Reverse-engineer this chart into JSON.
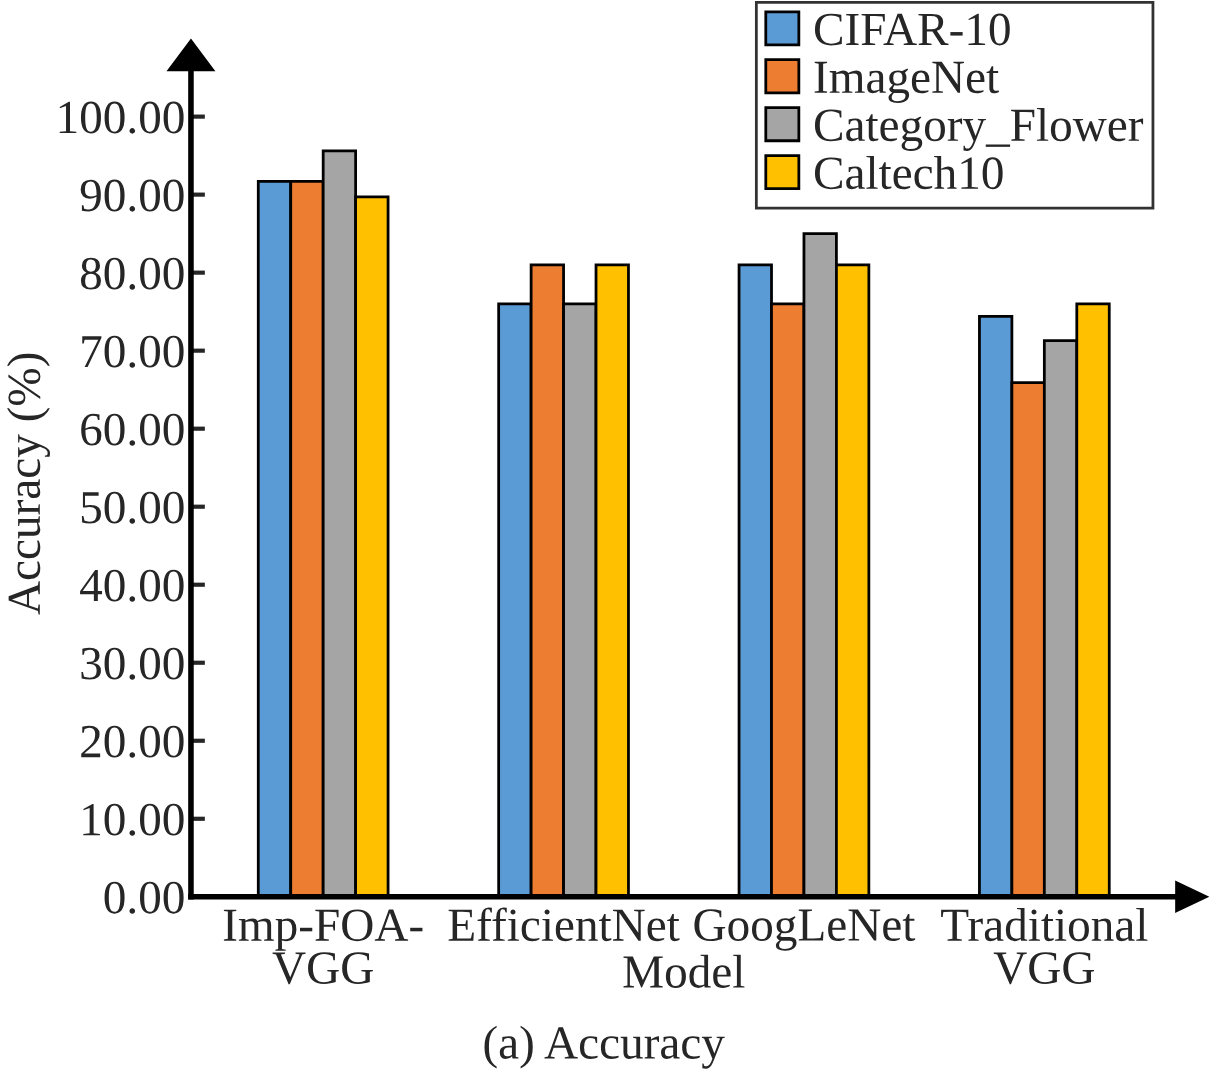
{
  "chart_data": {
    "type": "bar",
    "title": "(a) Accuracy",
    "xlabel": "Model",
    "ylabel": "Accuracy (%)",
    "categories": [
      "Imp-FOA-\nVGG",
      "EfficientNet",
      "GoogLeNet",
      "Traditional\nVGG"
    ],
    "series": [
      {
        "name": "CIFAR-10",
        "color": "#5b9bd5",
        "values": [
          91.7,
          76,
          81,
          74.4
        ]
      },
      {
        "name": "ImageNet",
        "color": "#ed7d31",
        "values": [
          91.7,
          81,
          76,
          65.9
        ]
      },
      {
        "name": "Category_Flower",
        "color": "#a5a5a5",
        "values": [
          95.6,
          76,
          85,
          71.3
        ]
      },
      {
        "name": "Caltech10",
        "color": "#ffc000",
        "values": [
          89.7,
          81,
          81,
          76
        ]
      }
    ],
    "ylim": [
      0,
      106
    ],
    "yticks": [
      {
        "value": 0,
        "label": "0.00"
      },
      {
        "value": 10,
        "label": "10.00"
      },
      {
        "value": 20,
        "label": "20.00"
      },
      {
        "value": 30,
        "label": "30.00"
      },
      {
        "value": 40,
        "label": "40.00"
      },
      {
        "value": 50,
        "label": "50.00"
      },
      {
        "value": 60,
        "label": "60.00"
      },
      {
        "value": 70,
        "label": "70.00"
      },
      {
        "value": 80,
        "label": "80.00"
      },
      {
        "value": 90,
        "label": "90.00"
      },
      {
        "value": 100,
        "label": "100.00"
      }
    ],
    "legend": "top right",
    "grid": false
  }
}
